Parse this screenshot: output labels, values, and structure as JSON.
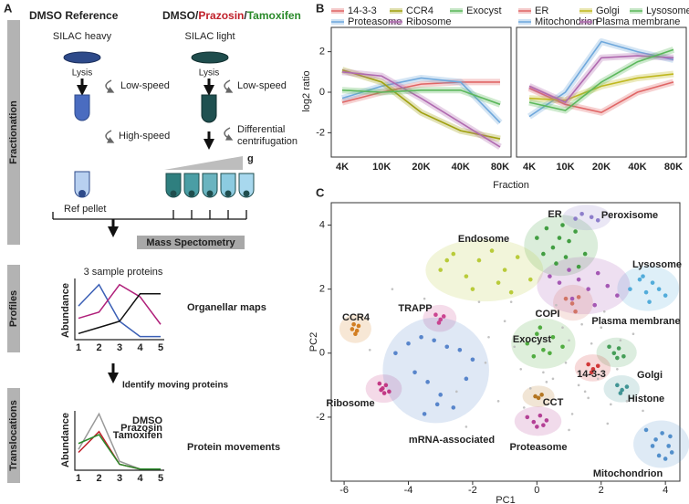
{
  "panel_labels": [
    "A",
    "B",
    "C"
  ],
  "workflow": {
    "reference_title": "DMSO Reference",
    "treatment_title": [
      "DMSO/",
      "Prazosin",
      "/",
      "Tamoxifen"
    ],
    "heavy_label": "SILAC heavy",
    "light_label": "SILAC light",
    "lysis": "Lysis",
    "low_speed": "Low-speed",
    "high_speed": "High-speed",
    "differential": [
      "Differential",
      "centrifugation"
    ],
    "g": "g",
    "ref_pellet": "Ref pellet",
    "mass_spec": "Mass Spectometry",
    "sections": [
      "Fractionation",
      "Profiles",
      "Translocations"
    ],
    "organellar_maps": "Organellar maps",
    "identify": "Identify moving proteins",
    "protein_movements": "Protein movements"
  },
  "chart_data": [
    {
      "type": "line",
      "title": "3 sample proteins",
      "y_label": "Abundance",
      "categories": [
        "1",
        "2",
        "3",
        "4",
        "5"
      ],
      "ylim": [
        0,
        1
      ],
      "series": [
        {
          "color": "#3b5fb5",
          "values": [
            0.55,
            0.9,
            0.3,
            0.05,
            0.05
          ]
        },
        {
          "color": "#b0207a",
          "values": [
            0.35,
            0.45,
            0.9,
            0.7,
            0.25
          ]
        },
        {
          "color": "#111111",
          "values": [
            0.1,
            0.2,
            0.3,
            0.75,
            0.75
          ]
        }
      ]
    },
    {
      "type": "line",
      "y_label": "Abundance",
      "categories": [
        "1",
        "2",
        "3",
        "4",
        "5"
      ],
      "ylim": [
        0,
        1
      ],
      "series": [
        {
          "name": "DMSO",
          "color": "#999999",
          "values": [
            0.35,
            0.95,
            0.15,
            0.02,
            0.02
          ]
        },
        {
          "name": "Prazosin",
          "color": "#c0202a",
          "values": [
            0.3,
            0.65,
            0.1,
            0.02,
            0.02
          ]
        },
        {
          "name": "Tamoxifen",
          "color": "#2a8a2a",
          "values": [
            0.45,
            0.6,
            0.1,
            0.02,
            0.02
          ]
        }
      ]
    },
    {
      "type": "line",
      "y_label": "log2 ratio",
      "x_label": "Fraction",
      "categories": [
        "4K",
        "10K",
        "20K",
        "40K",
        "80K"
      ],
      "ylim": [
        -3.2,
        3.2
      ],
      "yticks": [
        -2,
        0,
        2
      ],
      "series": [
        {
          "name": "14-3-3",
          "color": "#e06666",
          "values": [
            -0.5,
            0.0,
            0.4,
            0.5,
            0.5
          ]
        },
        {
          "name": "Proteasome",
          "color": "#6fa8dc",
          "values": [
            -0.3,
            0.3,
            0.7,
            0.5,
            -1.5
          ]
        },
        {
          "name": "CCR4",
          "color": "#a0a010",
          "values": [
            1.1,
            0.5,
            -1.0,
            -1.9,
            -2.3
          ]
        },
        {
          "name": "Ribosome",
          "color": "#b06ab0",
          "values": [
            1.0,
            0.8,
            -0.3,
            -1.5,
            -2.7
          ]
        },
        {
          "name": "Exocyst",
          "color": "#5cb85c",
          "values": [
            0.1,
            0.0,
            0.1,
            0.1,
            -0.6
          ]
        }
      ]
    },
    {
      "type": "line",
      "categories": [
        "4K",
        "10K",
        "20K",
        "40K",
        "80K"
      ],
      "ylim": [
        -3.2,
        3.2
      ],
      "series": [
        {
          "name": "ER",
          "color": "#e06666",
          "values": [
            0.2,
            -0.6,
            -1.0,
            0.0,
            0.5
          ]
        },
        {
          "name": "Mitochondrion",
          "color": "#6fa8dc",
          "values": [
            -1.2,
            0.0,
            2.5,
            2.0,
            1.6
          ]
        },
        {
          "name": "Golgi",
          "color": "#c0b820",
          "values": [
            -0.3,
            -0.4,
            0.3,
            0.7,
            0.9
          ]
        },
        {
          "name": "Plasma membrane",
          "color": "#b06ab0",
          "values": [
            0.3,
            -0.5,
            1.7,
            1.8,
            1.7
          ]
        },
        {
          "name": "Lysosome",
          "color": "#5cb85c",
          "values": [
            -0.5,
            -0.9,
            0.5,
            1.5,
            2.1
          ]
        }
      ]
    },
    {
      "type": "scatter",
      "x_label": "PC1",
      "y_label": "PC2",
      "xlim": [
        -6.4,
        4.45
      ],
      "ylim": [
        -4.0,
        4.7
      ],
      "xticks": [
        -6,
        -4,
        -2,
        0,
        2,
        4
      ],
      "yticks": [
        -2,
        0,
        2,
        4
      ],
      "series": [
        {
          "name": "ER",
          "color": "#3a9a3a",
          "x": [
            0.0,
            0.3,
            0.5,
            0.8,
            1.0,
            1.2,
            1.5,
            0.6,
            0.9,
            0.2,
            1.3,
            0.7
          ],
          "y": [
            3.6,
            3.9,
            3.3,
            4.0,
            3.5,
            3.8,
            3.1,
            2.8,
            3.0,
            3.1,
            2.7,
            3.6
          ]
        },
        {
          "name": "Endosome",
          "color": "#b5c832",
          "x": [
            -3.0,
            -2.6,
            -2.2,
            -1.8,
            -1.4,
            -1.0,
            -0.6,
            -0.2,
            -2.0,
            -1.2,
            -0.8,
            -2.8
          ],
          "y": [
            2.6,
            3.1,
            2.4,
            2.9,
            3.2,
            2.6,
            3.0,
            2.3,
            2.0,
            2.2,
            1.9,
            2.9
          ]
        },
        {
          "name": "Peroxisome",
          "color": "#8878c8",
          "x": [
            1.2,
            1.4,
            1.7,
            1.9
          ],
          "y": [
            4.2,
            4.35,
            4.25,
            4.15
          ]
        },
        {
          "name": "Lysosome",
          "color": "#4aa8d8",
          "x": [
            2.9,
            3.2,
            3.4,
            3.6,
            3.8,
            4.0,
            3.5,
            3.3
          ],
          "y": [
            2.0,
            2.3,
            1.9,
            2.2,
            2.0,
            1.8,
            1.6,
            2.4
          ]
        },
        {
          "name": "Plasma membrane",
          "color": "#a050b0",
          "x": [
            0.4,
            0.7,
            1.0,
            1.3,
            1.6,
            1.9,
            2.2,
            2.5,
            1.1,
            1.8
          ],
          "y": [
            2.4,
            2.2,
            2.6,
            2.3,
            2.0,
            2.5,
            2.1,
            1.8,
            1.7,
            1.5
          ]
        },
        {
          "name": "COPI",
          "color": "#d07060",
          "x": [
            0.9,
            1.1,
            1.3,
            1.2
          ],
          "y": [
            1.7,
            1.55,
            1.75,
            1.3
          ]
        },
        {
          "name": "TRAPP",
          "color": "#c83c8c",
          "x": [
            -3.15,
            -3.0,
            -2.9,
            -3.05
          ],
          "y": [
            1.2,
            1.05,
            1.15,
            0.95
          ]
        },
        {
          "name": "CCR4",
          "color": "#d07818",
          "x": [
            -5.75,
            -5.65,
            -5.55,
            -5.7,
            -5.6
          ],
          "y": [
            0.75,
            0.6,
            0.85,
            0.9,
            0.7
          ]
        },
        {
          "name": "Exocyst",
          "color": "#48a838",
          "x": [
            -0.3,
            0.0,
            0.2,
            0.5,
            0.8,
            0.1,
            0.4,
            -0.1
          ],
          "y": [
            0.3,
            0.6,
            0.1,
            0.5,
            0.2,
            0.8,
            0.0,
            -0.1
          ]
        },
        {
          "name": "Golgi",
          "color": "#3c9a50",
          "x": [
            2.25,
            2.4,
            2.55,
            2.7,
            2.5
          ],
          "y": [
            0.2,
            0.0,
            0.15,
            -0.1,
            -0.15
          ]
        },
        {
          "name": "14-3-3",
          "color": "#d03030",
          "x": [
            1.6,
            1.75,
            1.9,
            1.7
          ],
          "y": [
            -0.35,
            -0.5,
            -0.4,
            -0.6
          ]
        },
        {
          "name": "Histone",
          "color": "#3a9090",
          "x": [
            2.5,
            2.65,
            2.8,
            2.6
          ],
          "y": [
            -1.0,
            -1.15,
            -1.05,
            -1.25
          ]
        },
        {
          "name": "Ribosome",
          "color": "#c03080",
          "x": [
            -4.9,
            -4.8,
            -4.7,
            -4.6,
            -4.75,
            -4.85
          ],
          "y": [
            -0.95,
            -1.1,
            -1.0,
            -1.2,
            -1.25,
            -1.15
          ]
        },
        {
          "name": "CCT",
          "color": "#b07018",
          "x": [
            -0.05,
            0.05,
            0.15
          ],
          "y": [
            -1.35,
            -1.4,
            -1.3
          ]
        },
        {
          "name": "mRNA-associated",
          "color": "#5080c8",
          "x": [
            -4.4,
            -4.0,
            -3.6,
            -3.2,
            -2.8,
            -2.4,
            -2.0,
            -3.8,
            -3.4,
            -3.0,
            -2.6,
            -3.5,
            -3.1,
            -2.2
          ],
          "y": [
            0.0,
            0.3,
            0.5,
            0.4,
            0.2,
            0.1,
            -0.2,
            -0.6,
            -0.9,
            -1.3,
            -1.7,
            -1.9,
            -1.6,
            -0.8
          ]
        },
        {
          "name": "Proteasome",
          "color": "#b03890",
          "x": [
            -0.3,
            -0.1,
            0.1,
            0.3,
            0.0,
            0.2
          ],
          "y": [
            -2.0,
            -2.15,
            -1.95,
            -2.1,
            -2.3,
            -2.25
          ]
        },
        {
          "name": "Mitochondrion",
          "color": "#4a8ac8",
          "x": [
            3.4,
            3.7,
            3.9,
            4.1,
            4.2,
            3.8,
            4.0,
            3.6,
            4.15
          ],
          "y": [
            -2.4,
            -2.7,
            -2.5,
            -2.9,
            -3.1,
            -3.2,
            -3.3,
            -2.9,
            -2.6
          ]
        },
        {
          "color": "#bbbbbb",
          "x": [
            -1.5,
            -1.0,
            -0.5,
            0.0,
            0.5,
            1.0,
            1.5,
            2.0,
            2.5,
            3.0,
            -1.2,
            -0.7,
            0.3,
            0.9,
            1.4,
            1.9,
            2.3,
            -2.5,
            -1.8,
            -0.2,
            0.6,
            1.1,
            1.7,
            2.1,
            2.8,
            -3.5,
            -4.5,
            -5.2,
            -1.6,
            0.2,
            1.3,
            2.6,
            3.3,
            -0.8,
            0.8,
            1.6,
            -2.2,
            -0.4,
            1.0,
            2.2
          ],
          "y": [
            0.5,
            1.0,
            -0.5,
            1.3,
            -0.8,
            0.4,
            -1.2,
            0.8,
            -0.5,
            0.6,
            -1.5,
            0.2,
            -0.9,
            -0.3,
            0.9,
            -0.8,
            -1.6,
            -1.2,
            1.6,
            -1.1,
            1.5,
            -1.9,
            0.3,
            1.3,
            -1.5,
            1.7,
            2.0,
            0.1,
            -0.3,
            -0.6,
            -1.0,
            0.4,
            -1.8,
            1.6,
            0.8,
            -1.4,
            -2.3,
            -1.7,
            -2.4,
            -2.2
          ]
        }
      ]
    }
  ]
}
